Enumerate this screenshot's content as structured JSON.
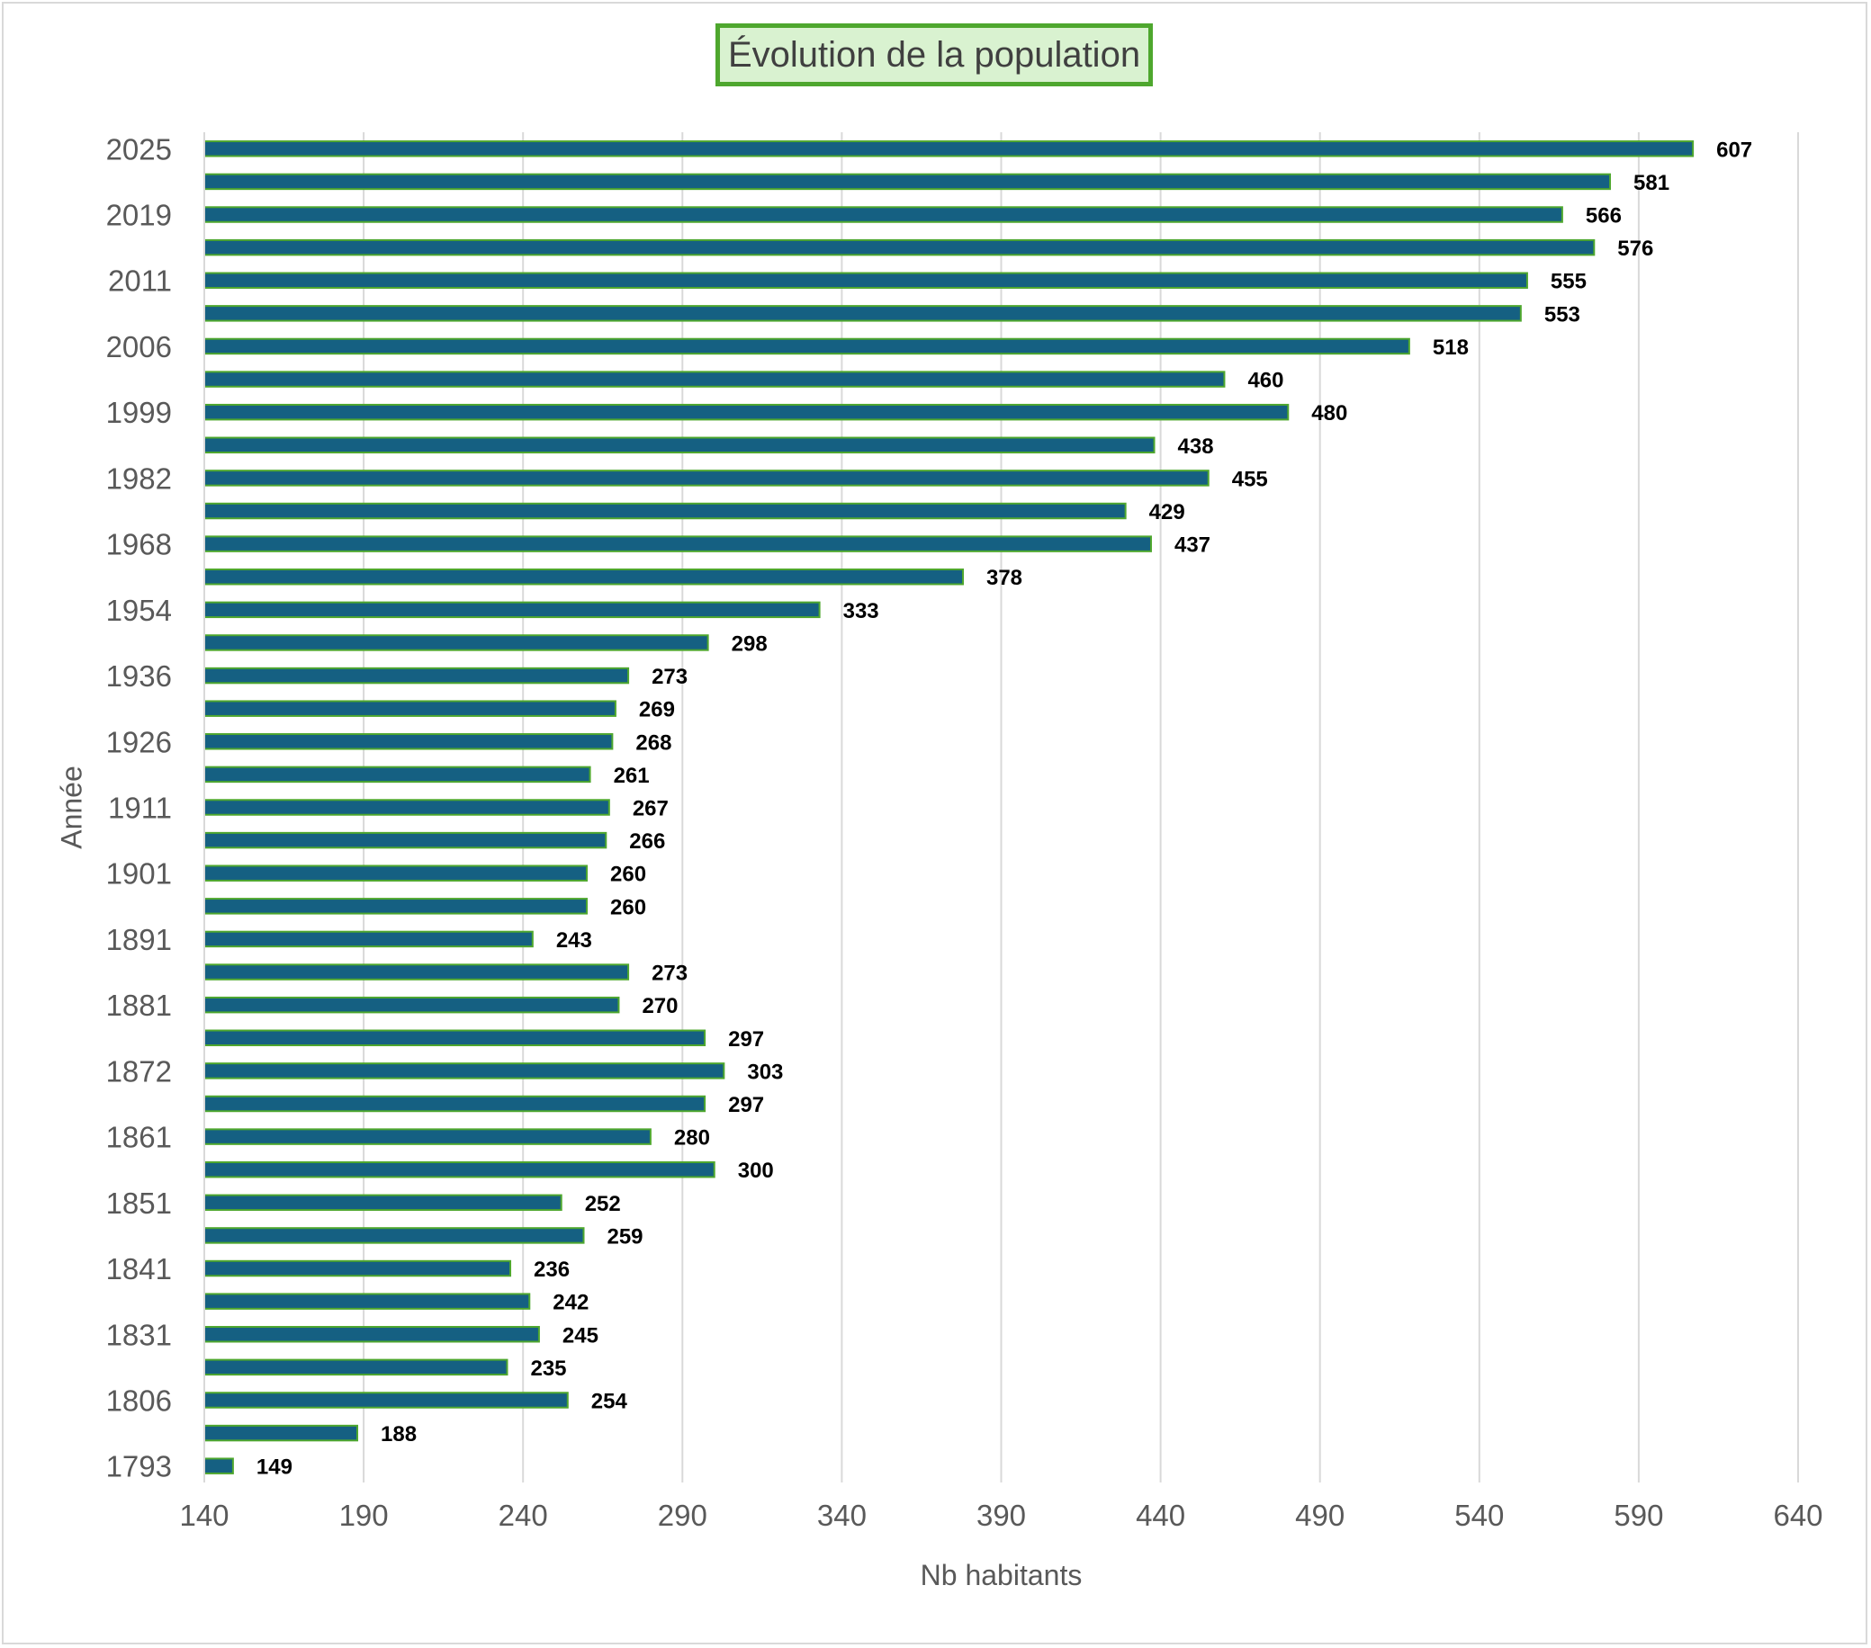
{
  "chart_data": {
    "type": "bar",
    "orientation": "horizontal",
    "title": "Évolution de la population",
    "xlabel": "Nb habitants",
    "ylabel": "Année",
    "xlim": [
      140,
      640
    ],
    "x_ticks": [
      140,
      190,
      240,
      290,
      340,
      390,
      440,
      490,
      540,
      590,
      640
    ],
    "grid": "vertical",
    "legend": "none",
    "colors": {
      "bar_fill": "#156082",
      "bar_border": "#4ea72e",
      "title_bg": "#d9f2d0",
      "title_border": "#4ea72e",
      "grid": "#d9d9d9",
      "axis_text": "#595959"
    },
    "categories": [
      "1793",
      "",
      "1806",
      "",
      "1831",
      "",
      "1841",
      "",
      "1851",
      "",
      "1861",
      "",
      "1872",
      "",
      "1881",
      "",
      "1891",
      "",
      "1901",
      "",
      "1911",
      "",
      "1926",
      "",
      "1936",
      "",
      "1954",
      "",
      "1968",
      "",
      "1982",
      "",
      "1999",
      "",
      "2006",
      "",
      "2011",
      "",
      "2019",
      "",
      "2025"
    ],
    "values": [
      149,
      188,
      254,
      235,
      245,
      242,
      236,
      259,
      252,
      300,
      280,
      297,
      303,
      297,
      270,
      273,
      243,
      260,
      260,
      266,
      267,
      261,
      268,
      269,
      273,
      298,
      333,
      378,
      437,
      429,
      455,
      438,
      480,
      460,
      518,
      553,
      555,
      576,
      566,
      581,
      607
    ]
  }
}
